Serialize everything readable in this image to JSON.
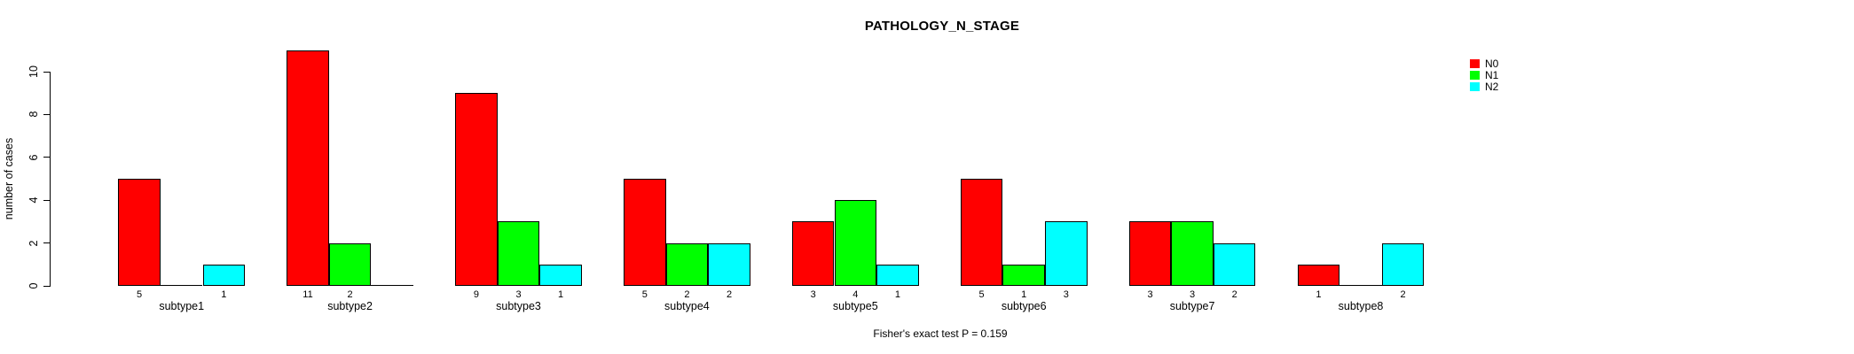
{
  "title": "PATHOLOGY_N_STAGE",
  "footnote": "Fisher's exact test P = 0.159",
  "chart_data": {
    "type": "bar",
    "title": "PATHOLOGY_N_STAGE",
    "xlabel": "",
    "ylabel": "number of cases",
    "categories": [
      "subtype1",
      "subtype2",
      "subtype3",
      "subtype4",
      "subtype5",
      "subtype6",
      "subtype7",
      "subtype8"
    ],
    "series": [
      {
        "name": "N0",
        "color": "#ff0000",
        "values": [
          5,
          11,
          9,
          5,
          3,
          5,
          3,
          1
        ]
      },
      {
        "name": "N1",
        "color": "#00ff00",
        "values": [
          0,
          2,
          3,
          2,
          4,
          1,
          3,
          0
        ]
      },
      {
        "name": "N2",
        "color": "#00ffff",
        "values": [
          1,
          0,
          1,
          2,
          1,
          3,
          2,
          2
        ]
      }
    ],
    "ylim": [
      0,
      11
    ],
    "yticks": [
      0,
      2,
      4,
      6,
      8,
      10
    ],
    "grid": false,
    "legend_position": "top-right",
    "bar_labels_note": "each bar's count is printed under the baseline; zero-count bars are drawn as a flat baseline segment with no label",
    "annotation": "Fisher's exact test P = 0.159"
  }
}
